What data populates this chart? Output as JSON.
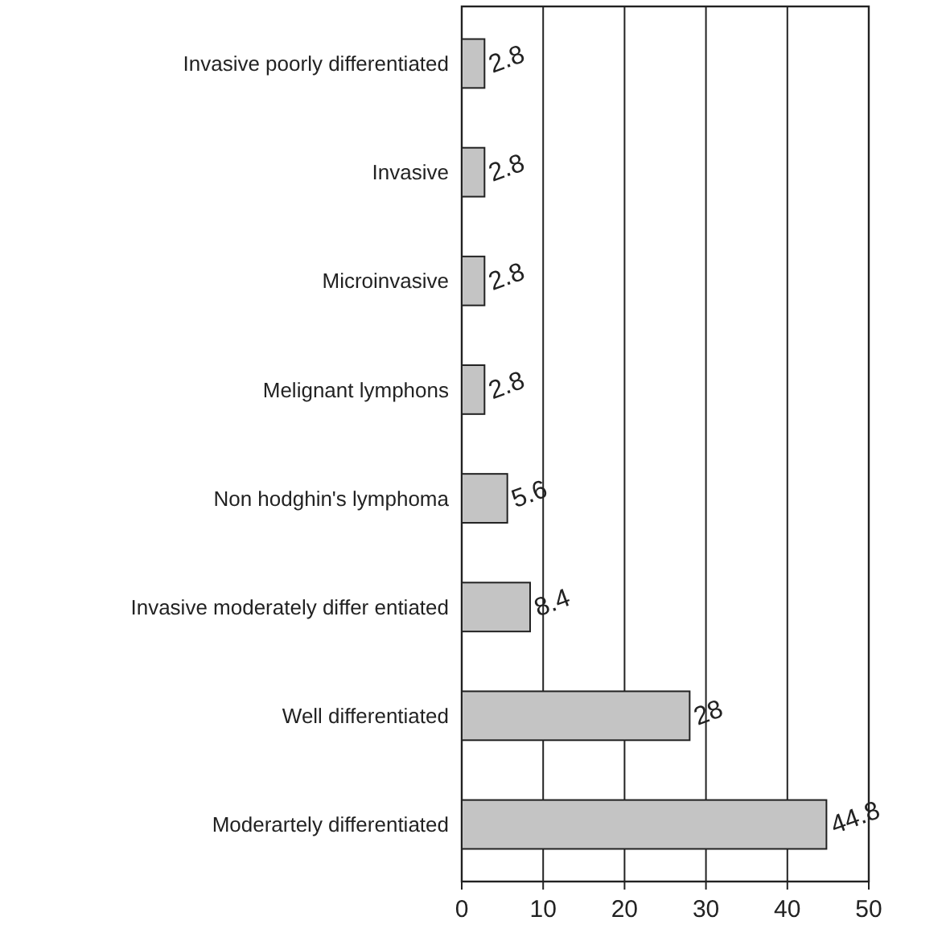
{
  "chart_data": {
    "type": "bar",
    "orientation": "horizontal",
    "categories": [
      "Invasive poorly differentiated",
      "Invasive",
      "Microinvasive",
      "Melignant lymphons",
      "Non hodghin's lymphoma",
      "Invasive moderately differ entiated",
      "Well differentiated",
      "Moderartely differentiated"
    ],
    "values": [
      2.8,
      2.8,
      2.8,
      2.8,
      5.6,
      8.4,
      28,
      44.8
    ],
    "color": "#c4c4c4",
    "xlim": [
      0,
      50
    ],
    "xticks": [
      0,
      10,
      20,
      30,
      40,
      50
    ],
    "grid": "x",
    "data_labels": true
  }
}
